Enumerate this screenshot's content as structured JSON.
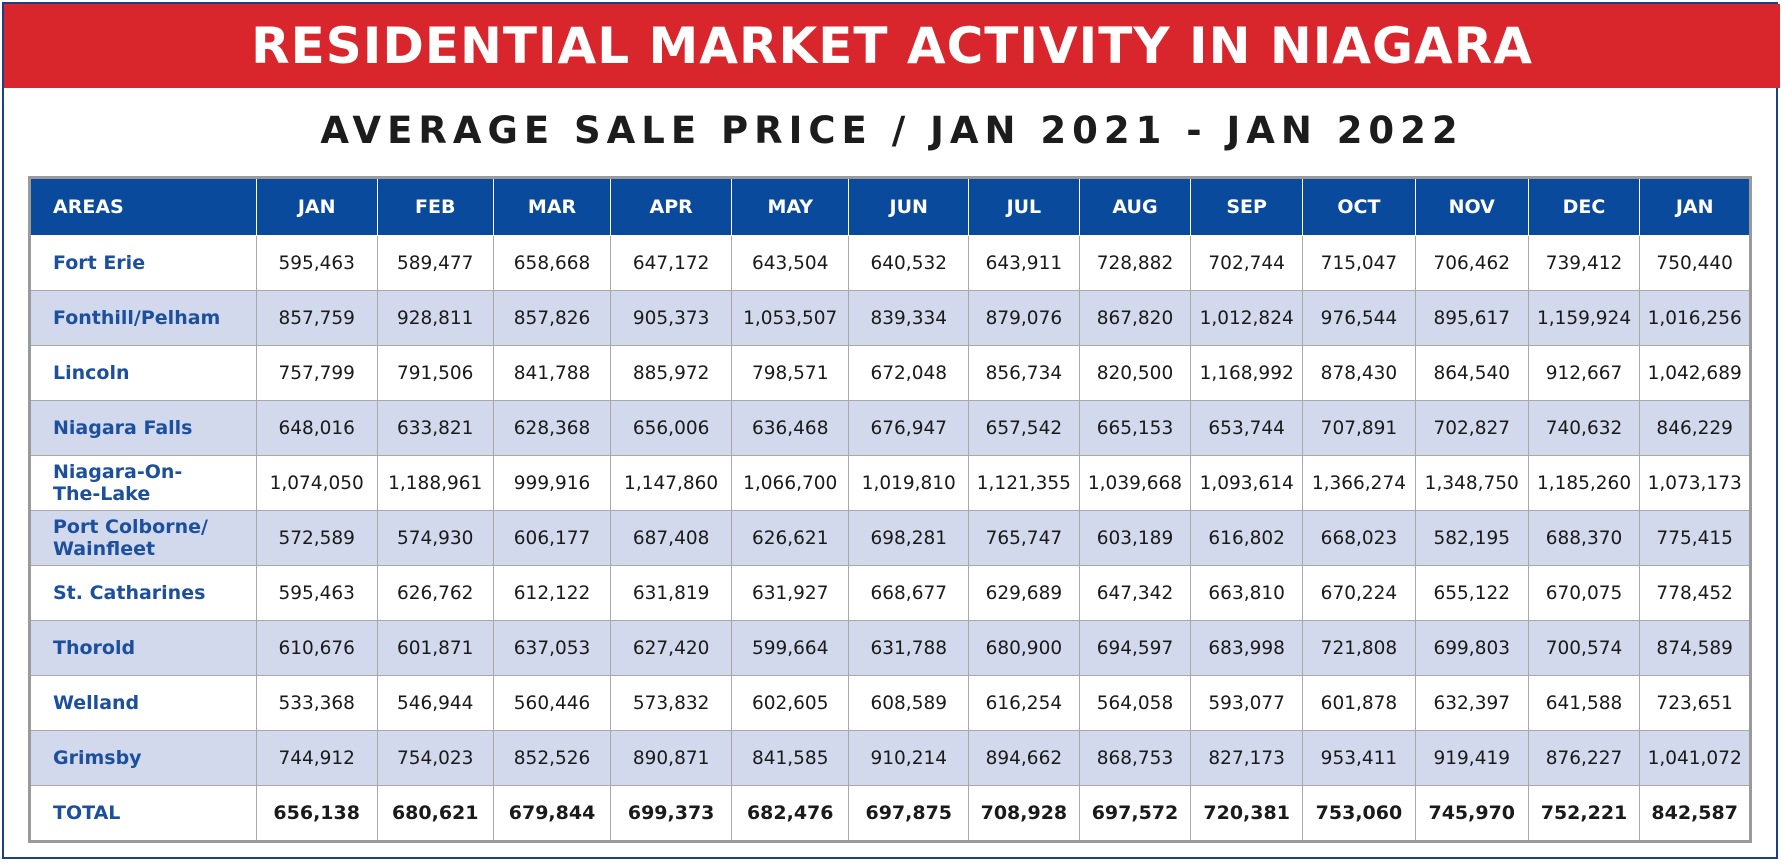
{
  "chart_data": {
    "type": "table",
    "title": "RESIDENTIAL MARKET ACTIVITY IN NIAGARA",
    "subtitle": "AVERAGE SALE PRICE / JAN 2021 - JAN 2022",
    "header_first": "AREAS",
    "columns": [
      "JAN",
      "FEB",
      "MAR",
      "APR",
      "MAY",
      "JUN",
      "JUL",
      "AUG",
      "SEP",
      "OCT",
      "NOV",
      "DEC",
      "JAN"
    ],
    "rows": [
      {
        "area": "Fort Erie",
        "values": [
          "595,463",
          "589,477",
          "658,668",
          "647,172",
          "643,504",
          "640,532",
          "643,911",
          "728,882",
          "702,744",
          "715,047",
          "706,462",
          "739,412",
          "750,440"
        ]
      },
      {
        "area": "Fonthill/Pelham",
        "values": [
          "857,759",
          "928,811",
          "857,826",
          "905,373",
          "1,053,507",
          "839,334",
          "879,076",
          "867,820",
          "1,012,824",
          "976,544",
          "895,617",
          "1,159,924",
          "1,016,256"
        ]
      },
      {
        "area": "Lincoln",
        "values": [
          "757,799",
          "791,506",
          "841,788",
          "885,972",
          "798,571",
          "672,048",
          "856,734",
          "820,500",
          "1,168,992",
          "878,430",
          "864,540",
          "912,667",
          "1,042,689"
        ]
      },
      {
        "area": "Niagara Falls",
        "values": [
          "648,016",
          "633,821",
          "628,368",
          "656,006",
          "636,468",
          "676,947",
          "657,542",
          "665,153",
          "653,744",
          "707,891",
          "702,827",
          "740,632",
          "846,229"
        ]
      },
      {
        "area": "Niagara-On-\nThe-Lake",
        "values": [
          "1,074,050",
          "1,188,961",
          "999,916",
          "1,147,860",
          "1,066,700",
          "1,019,810",
          "1,121,355",
          "1,039,668",
          "1,093,614",
          "1,366,274",
          "1,348,750",
          "1,185,260",
          "1,073,173"
        ]
      },
      {
        "area": "Port Colborne/\nWainfleet",
        "values": [
          "572,589",
          "574,930",
          "606,177",
          "687,408",
          "626,621",
          "698,281",
          "765,747",
          "603,189",
          "616,802",
          "668,023",
          "582,195",
          "688,370",
          "775,415"
        ]
      },
      {
        "area": "St. Catharines",
        "values": [
          "595,463",
          "626,762",
          "612,122",
          "631,819",
          "631,927",
          "668,677",
          "629,689",
          "647,342",
          "663,810",
          "670,224",
          "655,122",
          "670,075",
          "778,452"
        ]
      },
      {
        "area": "Thorold",
        "values": [
          "610,676",
          "601,871",
          "637,053",
          "627,420",
          "599,664",
          "631,788",
          "680,900",
          "694,597",
          "683,998",
          "721,808",
          "699,803",
          "700,574",
          "874,589"
        ]
      },
      {
        "area": "Welland",
        "values": [
          "533,368",
          "546,944",
          "560,446",
          "573,832",
          "602,605",
          "608,589",
          "616,254",
          "564,058",
          "593,077",
          "601,878",
          "632,397",
          "641,588",
          "723,651"
        ]
      },
      {
        "area": "Grimsby",
        "values": [
          "744,912",
          "754,023",
          "852,526",
          "890,871",
          "841,585",
          "910,214",
          "894,662",
          "868,753",
          "827,173",
          "953,411",
          "919,419",
          "876,227",
          "1,041,072"
        ]
      }
    ],
    "total": {
      "area": "TOTAL",
      "values": [
        "656,138",
        "680,621",
        "679,844",
        "699,373",
        "682,476",
        "697,875",
        "708,928",
        "697,572",
        "720,381",
        "753,060",
        "745,970",
        "752,221",
        "842,587"
      ]
    }
  },
  "colors": {
    "banner": "#d9262c",
    "header": "#0a4a9c",
    "area_text": "#1c4f9c",
    "alt_row": "#d2d9ec"
  }
}
